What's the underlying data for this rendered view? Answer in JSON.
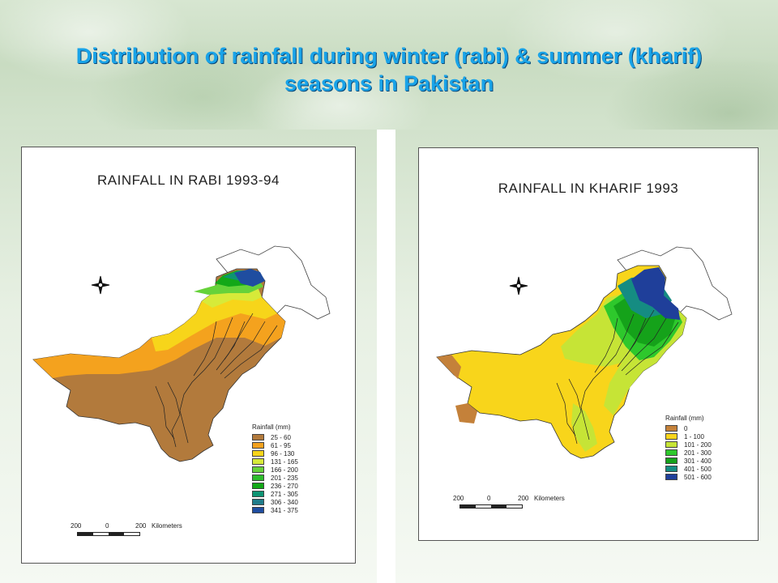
{
  "slide": {
    "title_line1": "Distribution of rainfall during winter (rabi) & summer (kharif)",
    "title_line2": "seasons in Pakistan"
  },
  "maps": [
    {
      "title": "RAINFALL IN RABI 1993-94",
      "legend_title": "Rainfall (mm)",
      "legend": [
        {
          "label": "25 - 60",
          "color": "#b27a3c"
        },
        {
          "label": "61 - 95",
          "color": "#f4a21e"
        },
        {
          "label": "96 - 130",
          "color": "#f7d51a"
        },
        {
          "label": "131 - 165",
          "color": "#d7ea39"
        },
        {
          "label": "166 - 200",
          "color": "#66d23a"
        },
        {
          "label": "201 - 235",
          "color": "#2fbd2d"
        },
        {
          "label": "236 - 270",
          "color": "#13a818"
        },
        {
          "label": "271 - 305",
          "color": "#0e9473"
        },
        {
          "label": "306 - 340",
          "color": "#207c8b"
        },
        {
          "label": "341 - 375",
          "color": "#1f4da0"
        }
      ],
      "scale": {
        "left": "200",
        "mid": "0",
        "right": "200",
        "unit": "Kilometers"
      }
    },
    {
      "title": "RAINFALL IN KHARIF 1993",
      "legend_title": "Rainfall (mm)",
      "legend": [
        {
          "label": "0",
          "color": "#c4813a"
        },
        {
          "label": "1 - 100",
          "color": "#f8d51b"
        },
        {
          "label": "101 - 200",
          "color": "#c6e436"
        },
        {
          "label": "201 - 300",
          "color": "#2ec82c"
        },
        {
          "label": "301 - 400",
          "color": "#15a21a"
        },
        {
          "label": "401 - 500",
          "color": "#158c82"
        },
        {
          "label": "501 - 600",
          "color": "#1f3f9a"
        }
      ],
      "scale": {
        "left": "200",
        "mid": "0",
        "right": "200",
        "unit": "Kilometers"
      }
    }
  ],
  "icons": {
    "north_arrow": "compass-rose-icon"
  }
}
